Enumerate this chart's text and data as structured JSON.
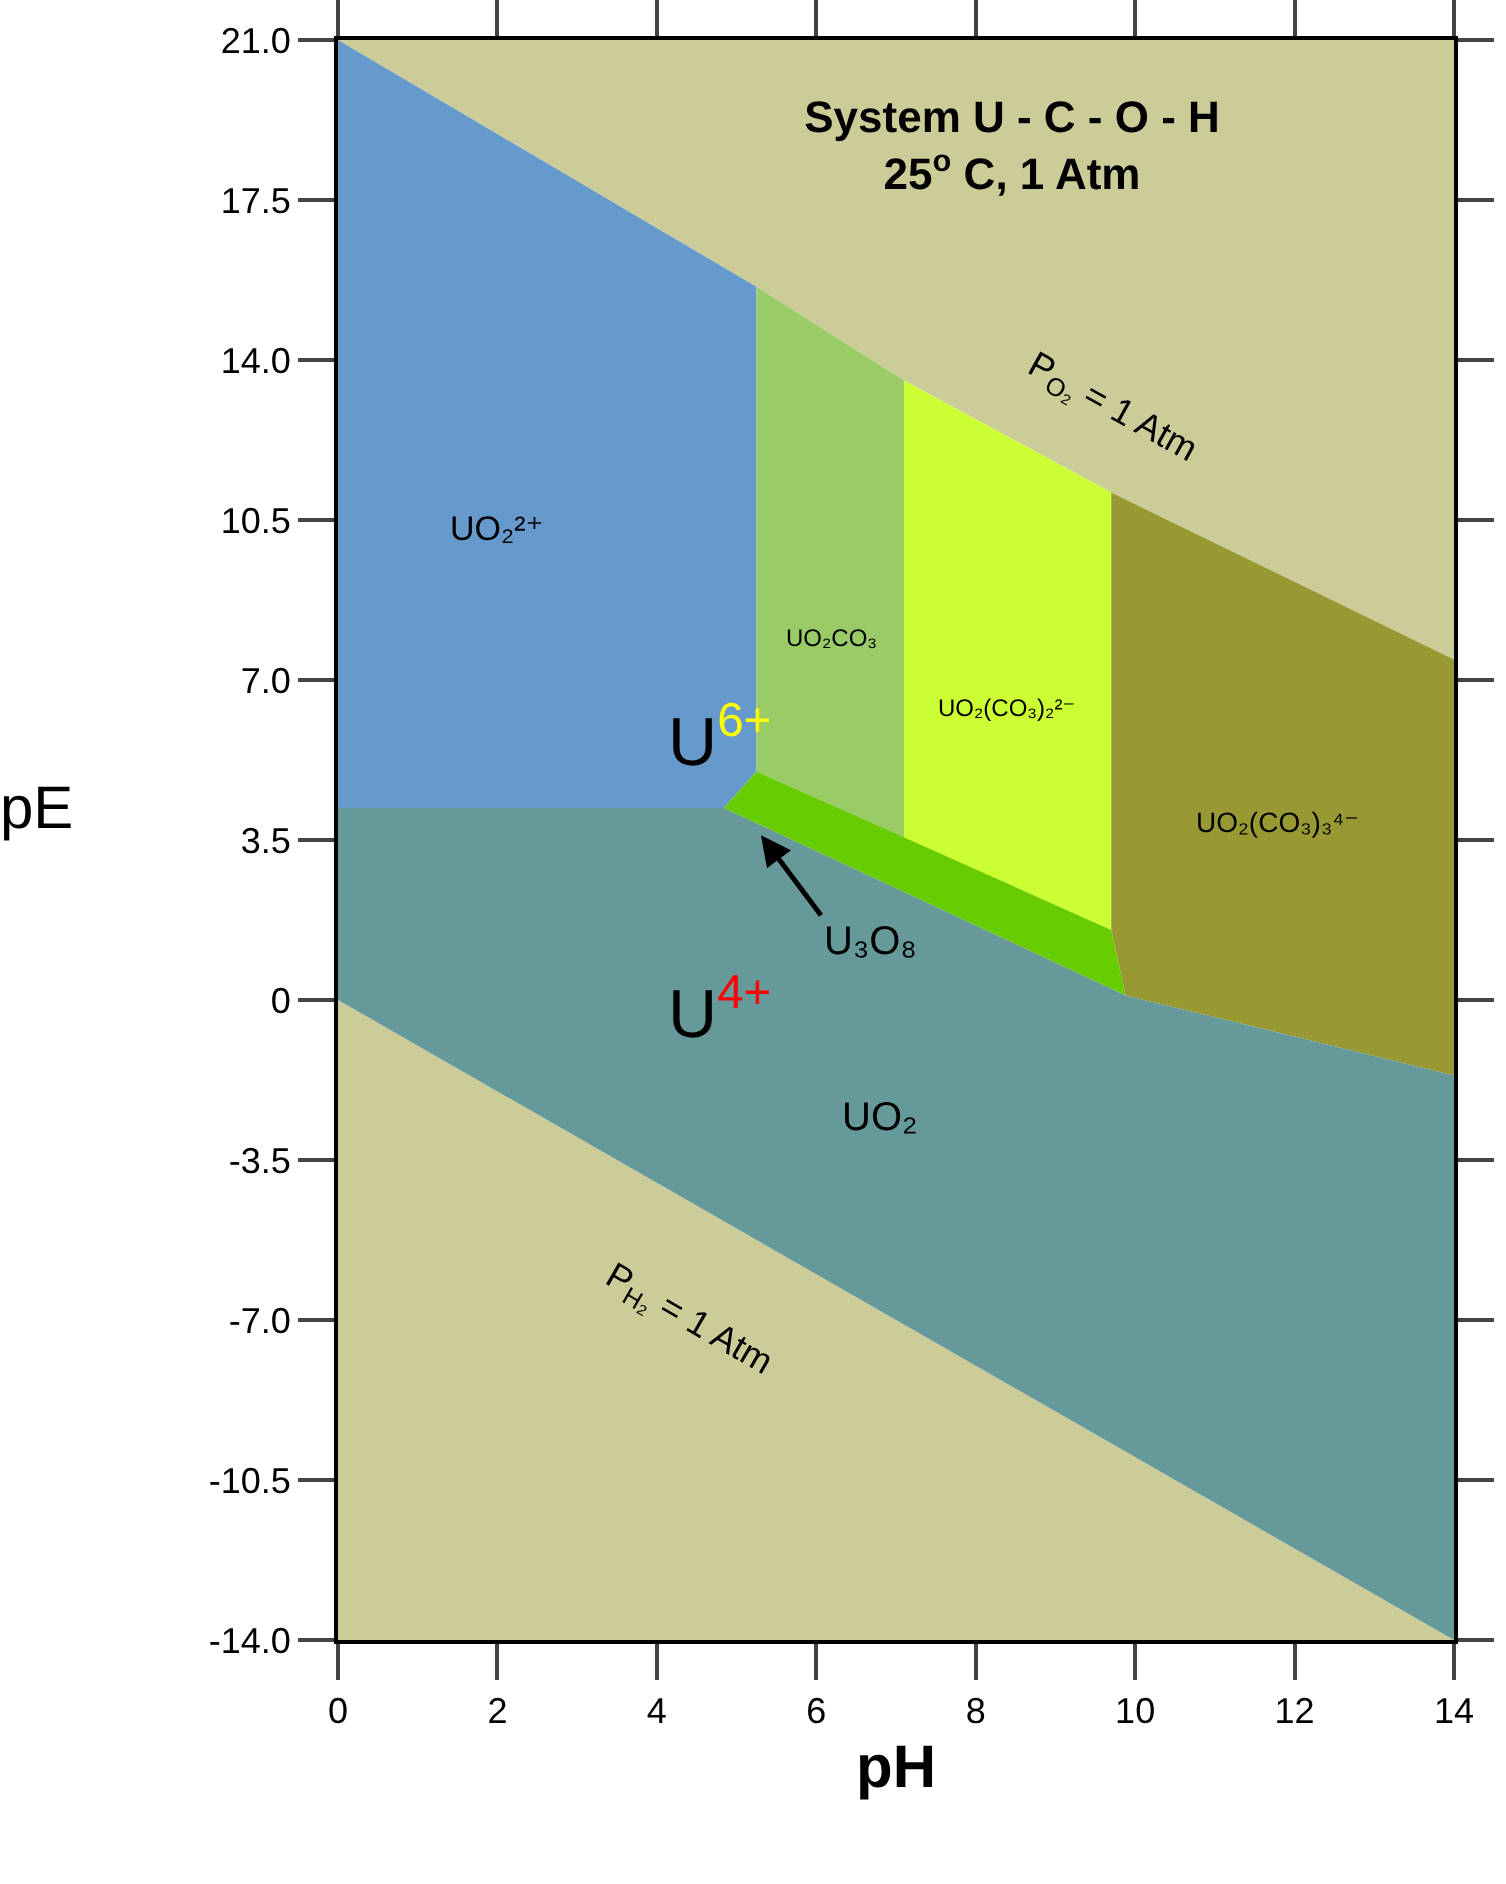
{
  "chart_data": {
    "type": "area",
    "title": "System U - C - O - H",
    "subtitle": "25$^{o}$ C, 1 Atm",
    "xlabel": "pH",
    "ylabel": "pE",
    "xlim": [
      0,
      14
    ],
    "xticks": [
      0,
      2,
      4,
      6,
      8,
      10,
      12,
      14
    ],
    "ylim": [
      -14,
      21
    ],
    "yticks": [
      {
        "value": 21,
        "label": "21.0"
      },
      17.5,
      {
        "value": 14,
        "label": "14.0"
      },
      10.5,
      {
        "value": 7,
        "label": "7.0"
      },
      3.5,
      {
        "value": 0,
        "label": "0"
      },
      -3.5,
      {
        "value": -7,
        "label": "-7.0"
      },
      -10.5,
      {
        "value": -14,
        "label": "-14.0"
      }
    ],
    "legend": false,
    "series": [
      {
        "color": "#cccc99",
        "x": [
          0,
          5.25,
          7.1,
          9.7,
          14,
          14
        ],
        "values": [
          21,
          15.6,
          13.55,
          11.1,
          7.45,
          21
        ]
      },
      {
        "color": "#cccc99",
        "x": [
          0,
          14,
          0
        ],
        "values": [
          0,
          -14,
          -14
        ]
      },
      {
        "name": "UO₂²⁺",
        "color": "#6699cc",
        "x": [
          0,
          0,
          4.84,
          5.25,
          5.25
        ],
        "values": [
          21,
          4.2,
          4.2,
          5.0,
          15.6
        ]
      },
      {
        "name": "UO₂CO₃",
        "color": "#99cc66",
        "x": [
          5.25,
          5.25,
          7.1,
          7.1
        ],
        "values": [
          15.6,
          5.0,
          3.55,
          13.55
        ]
      },
      {
        "name": "UO₂(CO₃)₂²⁻",
        "color": "#ccff33",
        "x": [
          7.1,
          7.1,
          9.7,
          9.7
        ],
        "values": [
          13.55,
          3.55,
          1.53,
          11.1
        ]
      },
      {
        "name": "UO₂(CO₃)₃⁴⁻",
        "color": "#999933",
        "x": [
          9.7,
          9.7,
          9.88,
          14,
          14
        ],
        "values": [
          11.1,
          1.53,
          0.1,
          -1.65,
          7.45
        ]
      },
      {
        "name": "U₃O₈",
        "color": "#66cc00",
        "x": [
          4.84,
          5.25,
          9.7,
          9.88
        ],
        "values": [
          4.2,
          5.0,
          1.53,
          0.1
        ]
      },
      {
        "name": "UO₂",
        "color": "#669999",
        "x": [
          0,
          4.84,
          9.88,
          14,
          14,
          0
        ],
        "values": [
          4.2,
          4.2,
          0.1,
          -1.65,
          -14,
          0
        ]
      }
    ],
    "annotations": [
      "U$^{6+}$",
      "U$^{4+}$",
      "P$_{O₂}$ = 1 Atm",
      "P$_{H₂}$ = 1 Atm"
    ]
  }
}
